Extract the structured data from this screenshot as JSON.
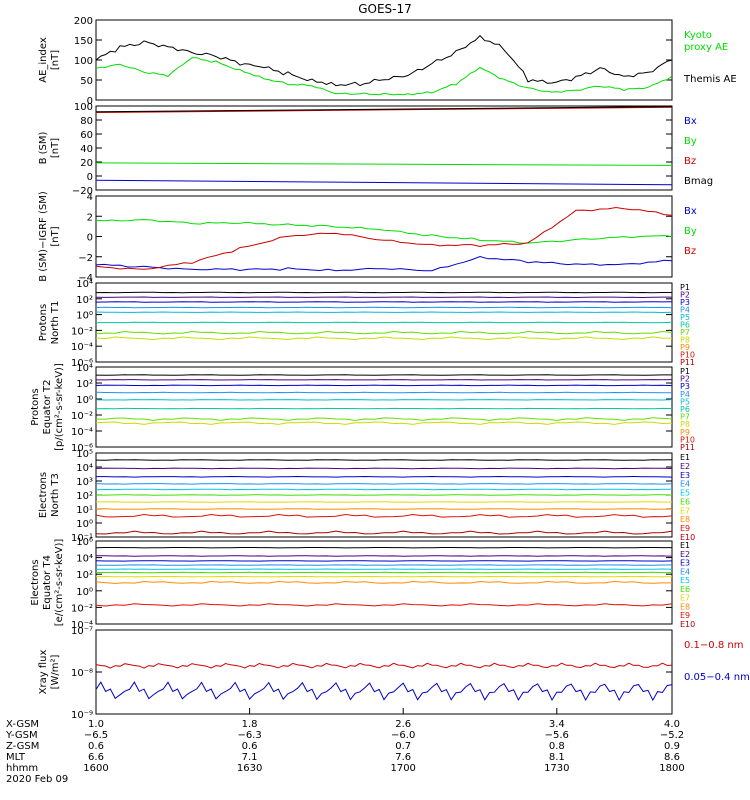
{
  "title": "GOES-17",
  "colors": {
    "black": "#000000",
    "green": "#00dd00",
    "blue": "#0000cc",
    "red": "#cc0000",
    "P1": "#000000",
    "P2": "#4b0082",
    "P3": "#0000cc",
    "P4": "#1e90ff",
    "P5": "#00bcd4",
    "P6": "#00c8a0",
    "P7": "#66dd00",
    "P8": "#c8dc00",
    "P9": "#ff8c00",
    "P10": "#dd1100",
    "P11": "#aa0000",
    "E1": "#000000",
    "E2": "#4b0082",
    "E3": "#0000cc",
    "E4": "#1e90ff",
    "E5": "#00c8e0",
    "E6": "#44dd00",
    "E7": "#e6d800",
    "E8": "#ff8c00",
    "E9": "#dd1100",
    "E10": "#aa0000"
  },
  "panels": [
    {
      "id": "ae",
      "ylabel_lines": [
        "AE_index",
        "[nT]"
      ],
      "ticks": [
        "0",
        "50",
        "100",
        "150",
        "200"
      ],
      "legend": [
        {
          "lines": [
            "Kyoto",
            "proxy AE"
          ],
          "color": "#00dd00"
        },
        {
          "lines": [
            "Themis AE"
          ],
          "color": "#000000"
        }
      ]
    },
    {
      "id": "bsm",
      "ylabel_lines": [
        "B (SM)",
        "[nT]"
      ],
      "ticks": [
        "−20",
        "0",
        "20",
        "40",
        "60",
        "80",
        "100"
      ],
      "legend": [
        {
          "lines": [
            "Bx"
          ],
          "color": "#0000cc"
        },
        {
          "lines": [
            "By"
          ],
          "color": "#00dd00"
        },
        {
          "lines": [
            "Bz"
          ],
          "color": "#cc0000"
        },
        {
          "lines": [
            "Bmag"
          ],
          "color": "#000000"
        }
      ]
    },
    {
      "id": "bdiff",
      "ylabel_lines": [
        "B (SM)−IGRF (SM)",
        "[nT]"
      ],
      "ticks": [
        "−4",
        "−2",
        "0",
        "2",
        "4"
      ],
      "legend": [
        {
          "lines": [
            "Bx"
          ],
          "color": "#0000cc"
        },
        {
          "lines": [
            "By"
          ],
          "color": "#00dd00"
        },
        {
          "lines": [
            "Bz"
          ],
          "color": "#cc0000"
        }
      ]
    },
    {
      "id": "pn",
      "ylabel_lines": [
        "Protons",
        "North T1"
      ],
      "ticks": [
        "10⁻⁶",
        "10⁻⁴",
        "10⁻²",
        "10⁰",
        "10²",
        "10⁴"
      ],
      "legend_list": [
        "P1",
        "P2",
        "P3",
        "P4",
        "P5",
        "P6",
        "P7",
        "P8",
        "P9",
        "P10",
        "P11"
      ]
    },
    {
      "id": "pe",
      "ylabel_lines": [
        "Protons",
        "Equator T2",
        "[p/(cm²-s-sr-keV)]"
      ],
      "ticks": [
        "10⁻⁶",
        "10⁻⁴",
        "10⁻²",
        "10⁰",
        "10²",
        "10⁴"
      ],
      "legend_list": [
        "P1",
        "P2",
        "P3",
        "P4",
        "P5",
        "P6",
        "P7",
        "P8",
        "P9",
        "P10",
        "P11"
      ]
    },
    {
      "id": "en",
      "ylabel_lines": [
        "Electrons",
        "North T3"
      ],
      "ticks": [
        "10⁻¹",
        "10⁰",
        "10¹",
        "10²",
        "10³",
        "10⁴",
        "10⁵"
      ],
      "legend_list": [
        "E1",
        "E2",
        "E3",
        "E4",
        "E5",
        "E6",
        "E7",
        "E8",
        "E9",
        "E10"
      ]
    },
    {
      "id": "ee",
      "ylabel_lines": [
        "Electrons",
        "Equator T4",
        "[e/(cm²-s-sr-keV)]"
      ],
      "ticks": [
        "10⁻⁴",
        "10⁻²",
        "10⁰",
        "10²",
        "10⁴",
        "10⁶"
      ],
      "legend_list": [
        "E1",
        "E2",
        "E3",
        "E4",
        "E5",
        "E6",
        "E7",
        "E8",
        "E9",
        "E10"
      ]
    },
    {
      "id": "xray",
      "ylabel_lines": [
        "Xray flux",
        "[W/m²]"
      ],
      "ticks": [
        "10⁻⁹",
        "10⁻⁸",
        "10⁻⁷"
      ],
      "legend": [
        {
          "lines": [
            "0.1−0.8 nm"
          ],
          "color": "#cc0000"
        },
        {
          "lines": [
            "0.05−0.4 nm"
          ],
          "color": "#0000cc"
        }
      ]
    }
  ],
  "xaxis": {
    "row_labels": [
      "X-GSM",
      "Y-GSM",
      "Z-GSM",
      "MLT",
      "hhmm"
    ],
    "date": "2020 Feb 09",
    "columns": [
      [
        "1.0",
        "−6.5",
        "0.6",
        "6.6",
        "1600"
      ],
      [
        "1.8",
        "−6.3",
        "0.6",
        "7.1",
        "1630"
      ],
      [
        "2.6",
        "−6.0",
        "0.7",
        "7.6",
        "1700"
      ],
      [
        "3.4",
        "−5.6",
        "0.8",
        "8.1",
        "1730"
      ],
      [
        "4.0",
        "−5.2",
        "0.9",
        "8.6",
        "1800"
      ]
    ]
  },
  "chart_data": {
    "type": "line",
    "title": "GOES-17",
    "x_hhmm": [
      "1600",
      "1630",
      "1700",
      "1730",
      "1800"
    ],
    "ae_index": {
      "ylim": [
        0,
        200
      ],
      "x": [
        0,
        5,
        10,
        15,
        20,
        25,
        30,
        35,
        40,
        45,
        50,
        55,
        60,
        65,
        70,
        75,
        80,
        85,
        90,
        95,
        100,
        105,
        110,
        115,
        120
      ],
      "series": [
        {
          "name": "Themis AE",
          "values": [
            100,
            130,
            145,
            135,
            120,
            110,
            90,
            80,
            65,
            50,
            40,
            40,
            50,
            60,
            90,
            120,
            160,
            130,
            50,
            40,
            55,
            80,
            60,
            70,
            100
          ]
        },
        {
          "name": "Kyoto proxy AE",
          "values": [
            80,
            90,
            70,
            60,
            105,
            95,
            75,
            55,
            40,
            35,
            15,
            15,
            15,
            15,
            20,
            40,
            80,
            50,
            30,
            20,
            25,
            35,
            25,
            30,
            60
          ]
        }
      ]
    },
    "b_sm": {
      "ylim": [
        -20,
        110
      ],
      "series": [
        {
          "name": "Bx",
          "values_start_end": [
            -5,
            -12
          ]
        },
        {
          "name": "By",
          "values_start_end": [
            22,
            18
          ]
        },
        {
          "name": "Bz",
          "values_start_end": [
            100,
            108
          ]
        },
        {
          "name": "Bmag",
          "values_start_end": [
            101,
            109
          ]
        }
      ]
    },
    "b_minus_igrf": {
      "ylim": [
        -4,
        4
      ],
      "x": [
        0,
        10,
        20,
        30,
        40,
        50,
        60,
        70,
        80,
        90,
        100,
        110,
        120
      ],
      "series": [
        {
          "name": "Bx",
          "values": [
            -2.8,
            -3.0,
            -3.2,
            -3.3,
            -3.2,
            -3.3,
            -3.2,
            -3.4,
            -2.0,
            -2.5,
            -2.8,
            -2.7,
            -2.4
          ]
        },
        {
          "name": "By",
          "values": [
            1.5,
            1.7,
            1.3,
            1.3,
            1.2,
            1.0,
            0.6,
            0.1,
            -0.3,
            -0.7,
            -0.3,
            0.0,
            0.0
          ]
        },
        {
          "name": "Bz",
          "values": [
            -3.0,
            -3.2,
            -2.6,
            -1.2,
            0.1,
            0.3,
            -0.4,
            -0.8,
            -0.9,
            -0.7,
            2.6,
            2.8,
            2.1
          ]
        }
      ]
    },
    "protons_north_t1_log10": {
      "ylim": [
        -6,
        4
      ],
      "series": [
        {
          "name": "P1",
          "value": 2.8
        },
        {
          "name": "P2",
          "value": 2.2
        },
        {
          "name": "P3",
          "value": 1.6
        },
        {
          "name": "P4",
          "value": 0.9
        },
        {
          "name": "P5",
          "value": 0.3
        },
        {
          "name": "P6",
          "value": -1.0
        },
        {
          "name": "P7",
          "value": -2.3
        },
        {
          "name": "P8",
          "value": -3.0
        }
      ]
    },
    "protons_equator_t2_log10": {
      "ylim": [
        -6,
        4
      ],
      "series": [
        {
          "name": "P1",
          "value": 3.0
        },
        {
          "name": "P2",
          "value": 2.4
        },
        {
          "name": "P3",
          "value": 1.7
        },
        {
          "name": "P4",
          "value": 0.8
        },
        {
          "name": "P5",
          "value": -0.1
        },
        {
          "name": "P6",
          "value": -1.2
        },
        {
          "name": "P7",
          "value": -2.5
        },
        {
          "name": "P8",
          "value": -3.0
        }
      ]
    },
    "electrons_north_t3_log10": {
      "ylim": [
        -1,
        5
      ],
      "series": [
        {
          "name": "E1",
          "value": 4.5
        },
        {
          "name": "E2",
          "value": 3.9
        },
        {
          "name": "E3",
          "value": 3.3
        },
        {
          "name": "E4",
          "value": 2.8
        },
        {
          "name": "E5",
          "value": 2.4
        },
        {
          "name": "E6",
          "value": 2.0
        },
        {
          "name": "E7",
          "value": 1.5
        },
        {
          "name": "E8",
          "value": 1.0
        },
        {
          "name": "E9",
          "value": 0.5
        },
        {
          "name": "E10",
          "value": -0.7
        }
      ]
    },
    "electrons_equator_t4_log10": {
      "ylim": [
        -4,
        6
      ],
      "series": [
        {
          "name": "E1",
          "value": 5.2
        },
        {
          "name": "E2",
          "value": 4.2
        },
        {
          "name": "E3",
          "value": 3.6
        },
        {
          "name": "E4",
          "value": 3.1
        },
        {
          "name": "E5",
          "value": 2.6
        },
        {
          "name": "E6",
          "value": 2.2
        },
        {
          "name": "E7",
          "value": 1.7
        },
        {
          "name": "E8",
          "value": 1.0
        },
        {
          "name": "E9",
          "value": -1.7
        }
      ]
    },
    "xray_flux_log10": {
      "ylim": [
        -9,
        -7
      ],
      "series": [
        {
          "name": "0.1−0.8 nm",
          "value": -7.85
        },
        {
          "name": "0.05−0.4 nm",
          "value": -8.45
        }
      ]
    }
  }
}
